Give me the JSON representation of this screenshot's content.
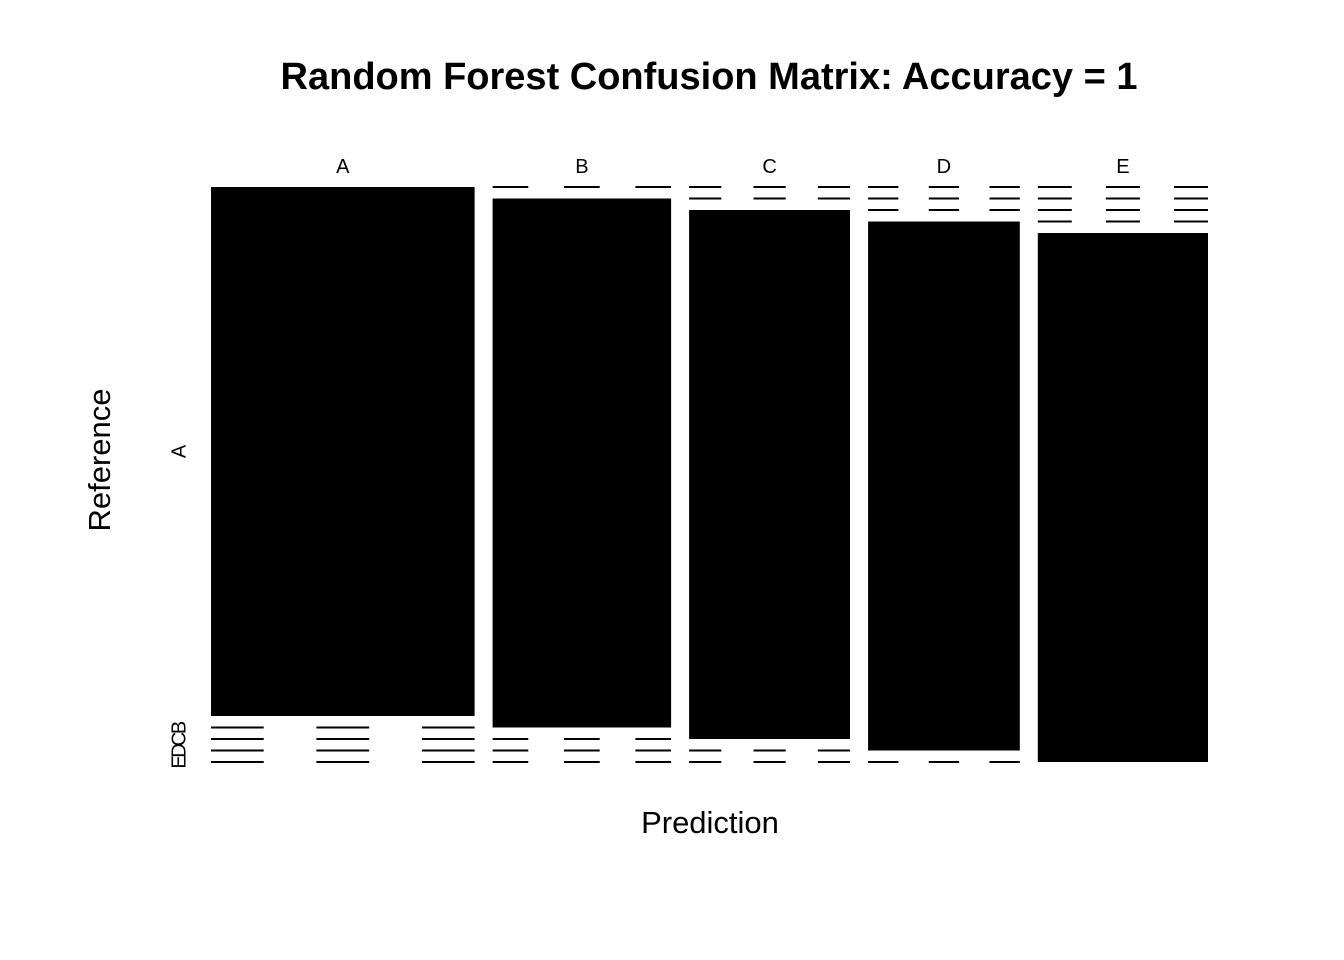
{
  "chart_data": {
    "type": "mosaic",
    "title": "Random Forest Confusion Matrix: Accuracy = 1",
    "xlabel": "Prediction",
    "ylabel": "Reference",
    "categories": [
      "A",
      "B",
      "C",
      "D",
      "E"
    ],
    "series": [
      {
        "name": "A",
        "values": [
          1.0,
          0.0,
          0.0,
          0.0,
          0.0
        ]
      },
      {
        "name": "B",
        "values": [
          0.0,
          1.0,
          0.0,
          0.0,
          0.0
        ]
      },
      {
        "name": "C",
        "values": [
          0.0,
          0.0,
          1.0,
          0.0,
          0.0
        ]
      },
      {
        "name": "D",
        "values": [
          0.0,
          0.0,
          0.0,
          1.0,
          0.0
        ]
      },
      {
        "name": "E",
        "values": [
          0.0,
          0.0,
          0.0,
          0.0,
          1.0
        ]
      }
    ],
    "column_proportions": [
      0.285,
      0.193,
      0.174,
      0.164,
      0.184
    ],
    "fill_color": "#000000",
    "background": "#ffffff",
    "grid": false
  }
}
